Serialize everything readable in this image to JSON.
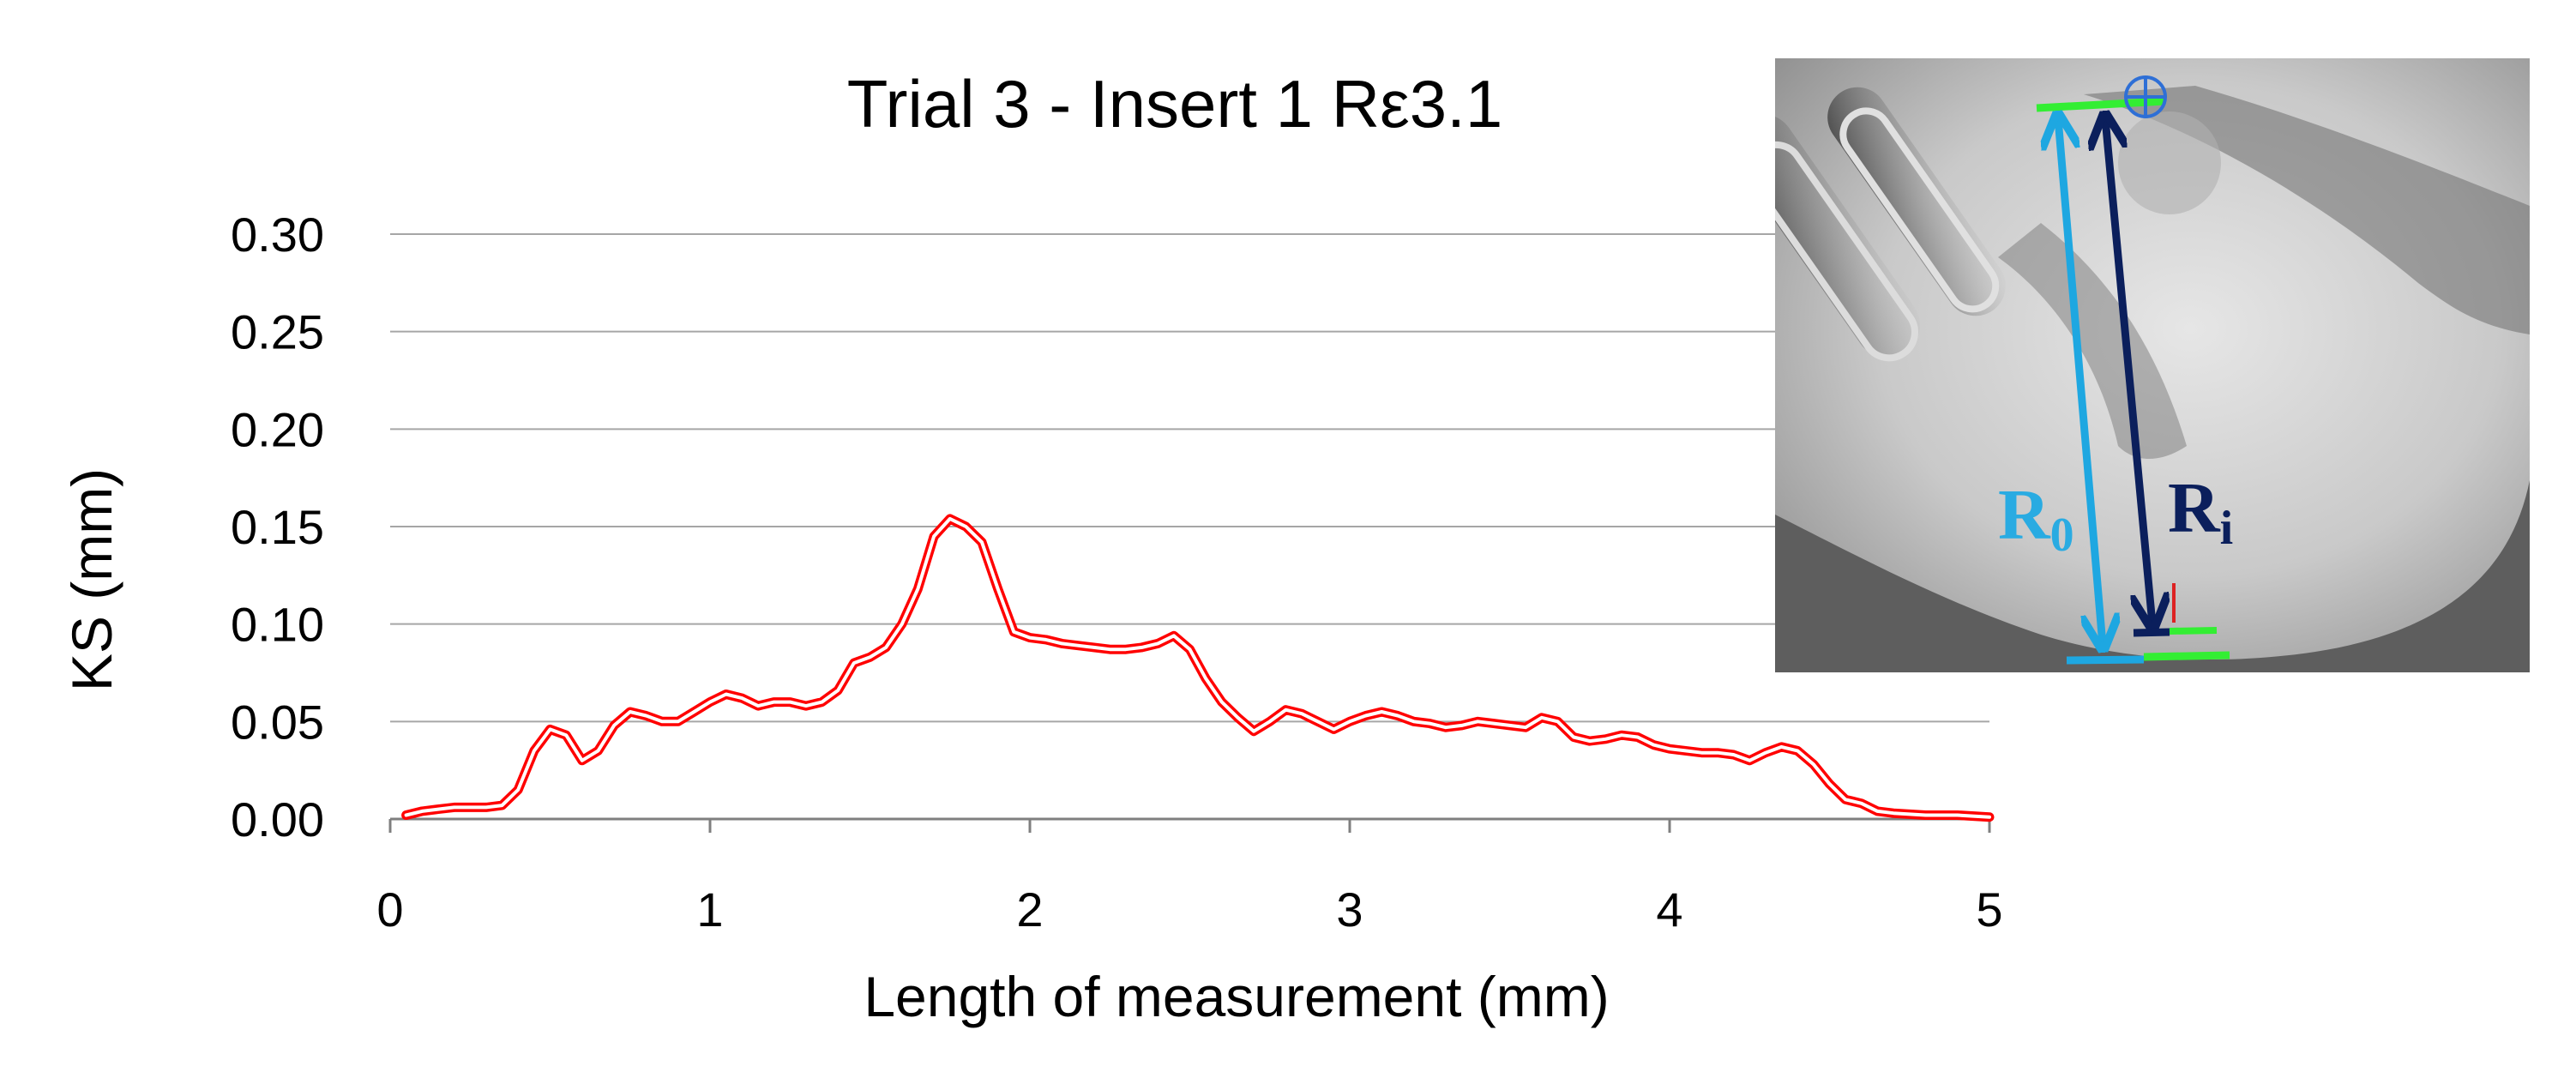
{
  "chart_data": {
    "type": "line",
    "title": "Trial 3 - Insert 1 Rε3.1",
    "xlabel": "Length of measurement (mm)",
    "ylabel": "KS (mm)",
    "xlim": [
      0,
      5
    ],
    "ylim": [
      0,
      0.3
    ],
    "x_ticks": [
      "0",
      "1",
      "2",
      "3",
      "4",
      "5"
    ],
    "y_ticks": [
      "0.00",
      "0.05",
      "0.10",
      "0.15",
      "0.20",
      "0.25",
      "0.30"
    ],
    "grid": "horizontal",
    "legend": "none",
    "series": [
      {
        "color": "#ff0000",
        "points": [
          [
            0.05,
            0.002
          ],
          [
            0.1,
            0.004
          ],
          [
            0.15,
            0.005
          ],
          [
            0.2,
            0.006
          ],
          [
            0.25,
            0.006
          ],
          [
            0.3,
            0.006
          ],
          [
            0.35,
            0.007
          ],
          [
            0.4,
            0.015
          ],
          [
            0.45,
            0.035
          ],
          [
            0.5,
            0.046
          ],
          [
            0.55,
            0.043
          ],
          [
            0.6,
            0.03
          ],
          [
            0.65,
            0.035
          ],
          [
            0.7,
            0.048
          ],
          [
            0.75,
            0.055
          ],
          [
            0.8,
            0.053
          ],
          [
            0.85,
            0.05
          ],
          [
            0.9,
            0.05
          ],
          [
            0.95,
            0.055
          ],
          [
            1.0,
            0.06
          ],
          [
            1.05,
            0.064
          ],
          [
            1.1,
            0.062
          ],
          [
            1.15,
            0.058
          ],
          [
            1.2,
            0.06
          ],
          [
            1.25,
            0.06
          ],
          [
            1.3,
            0.058
          ],
          [
            1.35,
            0.06
          ],
          [
            1.4,
            0.066
          ],
          [
            1.45,
            0.08
          ],
          [
            1.5,
            0.083
          ],
          [
            1.55,
            0.088
          ],
          [
            1.6,
            0.1
          ],
          [
            1.65,
            0.118
          ],
          [
            1.7,
            0.145
          ],
          [
            1.75,
            0.154
          ],
          [
            1.8,
            0.15
          ],
          [
            1.85,
            0.142
          ],
          [
            1.9,
            0.118
          ],
          [
            1.95,
            0.096
          ],
          [
            2.0,
            0.093
          ],
          [
            2.05,
            0.092
          ],
          [
            2.1,
            0.09
          ],
          [
            2.15,
            0.089
          ],
          [
            2.2,
            0.088
          ],
          [
            2.25,
            0.087
          ],
          [
            2.3,
            0.087
          ],
          [
            2.35,
            0.088
          ],
          [
            2.4,
            0.09
          ],
          [
            2.45,
            0.094
          ],
          [
            2.5,
            0.087
          ],
          [
            2.55,
            0.072
          ],
          [
            2.6,
            0.06
          ],
          [
            2.65,
            0.052
          ],
          [
            2.7,
            0.045
          ],
          [
            2.75,
            0.05
          ],
          [
            2.8,
            0.056
          ],
          [
            2.85,
            0.054
          ],
          [
            2.9,
            0.05
          ],
          [
            2.95,
            0.046
          ],
          [
            3.0,
            0.05
          ],
          [
            3.05,
            0.053
          ],
          [
            3.1,
            0.055
          ],
          [
            3.15,
            0.053
          ],
          [
            3.2,
            0.05
          ],
          [
            3.25,
            0.049
          ],
          [
            3.3,
            0.047
          ],
          [
            3.35,
            0.048
          ],
          [
            3.4,
            0.05
          ],
          [
            3.45,
            0.049
          ],
          [
            3.5,
            0.048
          ],
          [
            3.55,
            0.047
          ],
          [
            3.6,
            0.052
          ],
          [
            3.65,
            0.05
          ],
          [
            3.7,
            0.042
          ],
          [
            3.75,
            0.04
          ],
          [
            3.8,
            0.041
          ],
          [
            3.85,
            0.043
          ],
          [
            3.9,
            0.042
          ],
          [
            3.95,
            0.038
          ],
          [
            4.0,
            0.036
          ],
          [
            4.05,
            0.035
          ],
          [
            4.1,
            0.034
          ],
          [
            4.15,
            0.034
          ],
          [
            4.2,
            0.033
          ],
          [
            4.25,
            0.03
          ],
          [
            4.3,
            0.034
          ],
          [
            4.35,
            0.037
          ],
          [
            4.4,
            0.035
          ],
          [
            4.45,
            0.028
          ],
          [
            4.5,
            0.018
          ],
          [
            4.55,
            0.01
          ],
          [
            4.6,
            0.008
          ],
          [
            4.65,
            0.004
          ],
          [
            4.7,
            0.003
          ],
          [
            4.8,
            0.002
          ],
          [
            4.9,
            0.002
          ],
          [
            5.0,
            0.001
          ]
        ]
      }
    ],
    "inset_image": {
      "content": "grayscale micrograph of insert cutting edge with measurement arrows",
      "labels": [
        {
          "main": "R",
          "sub": "0",
          "color": "#29abe2"
        },
        {
          "main": "R",
          "sub": "i",
          "color": "#0b1f5c"
        }
      ],
      "arrow_colors": {
        "r0": "#1ea7e1",
        "ri": "#0b1f5c",
        "reference_lines": "#33dd33"
      }
    }
  }
}
